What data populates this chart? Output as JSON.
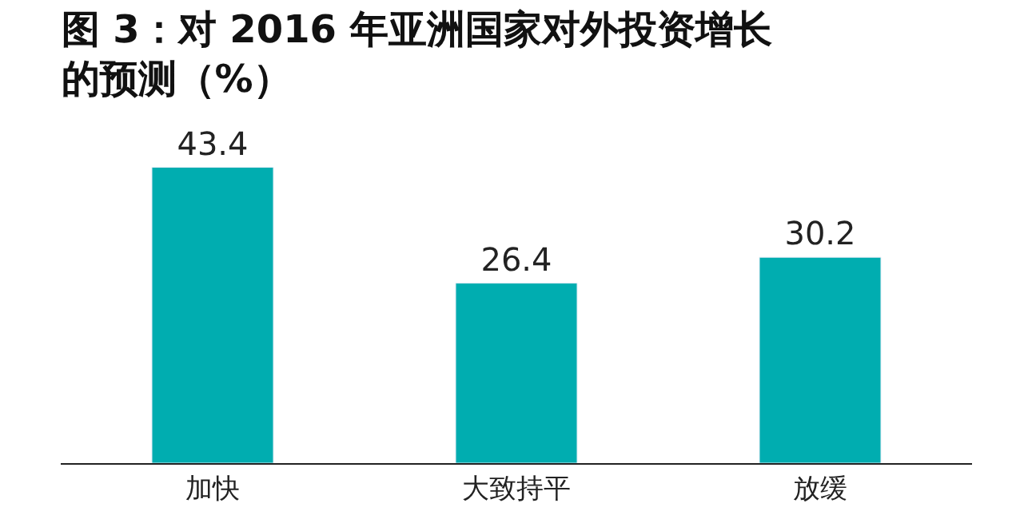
{
  "chart_data": {
    "type": "bar",
    "title": "图 3：对 2016 年亚洲国家对外投资增长的预测（%）",
    "categories": [
      "加快",
      "大致持平",
      "放缓"
    ],
    "values": [
      43.4,
      26.4,
      30.2
    ],
    "color": "#00adb0",
    "data_labels": true
  }
}
